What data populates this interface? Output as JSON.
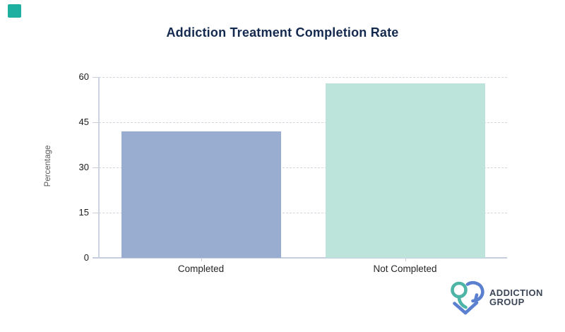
{
  "page": {
    "background": "#ffffff"
  },
  "corner_icon": {
    "color": "#1db0a0"
  },
  "chart_data": {
    "type": "bar",
    "title": "Addiction Treatment Completion Rate",
    "title_color": "#14294e",
    "categories": [
      "Completed",
      "Not Completed"
    ],
    "values": [
      42,
      58
    ],
    "xlabel": "",
    "ylabel": "Percentage",
    "ylim": [
      0,
      60
    ],
    "yticks": [
      0,
      15,
      30,
      45,
      60
    ],
    "grid": "horizontal-dashed",
    "legend_position": "none",
    "bar_colors": [
      "#98adcf",
      "#bce4da"
    ],
    "axis_color": "#ccd3e4",
    "gridline_color": "#d6d6e0",
    "tick_label_color": "#1a1a1a"
  },
  "logo": {
    "line1": "ADDICTION",
    "line2": "GROUP",
    "text_color": "#3c4657",
    "teal": "#4eb5a6",
    "blue": "#5c80d0"
  }
}
